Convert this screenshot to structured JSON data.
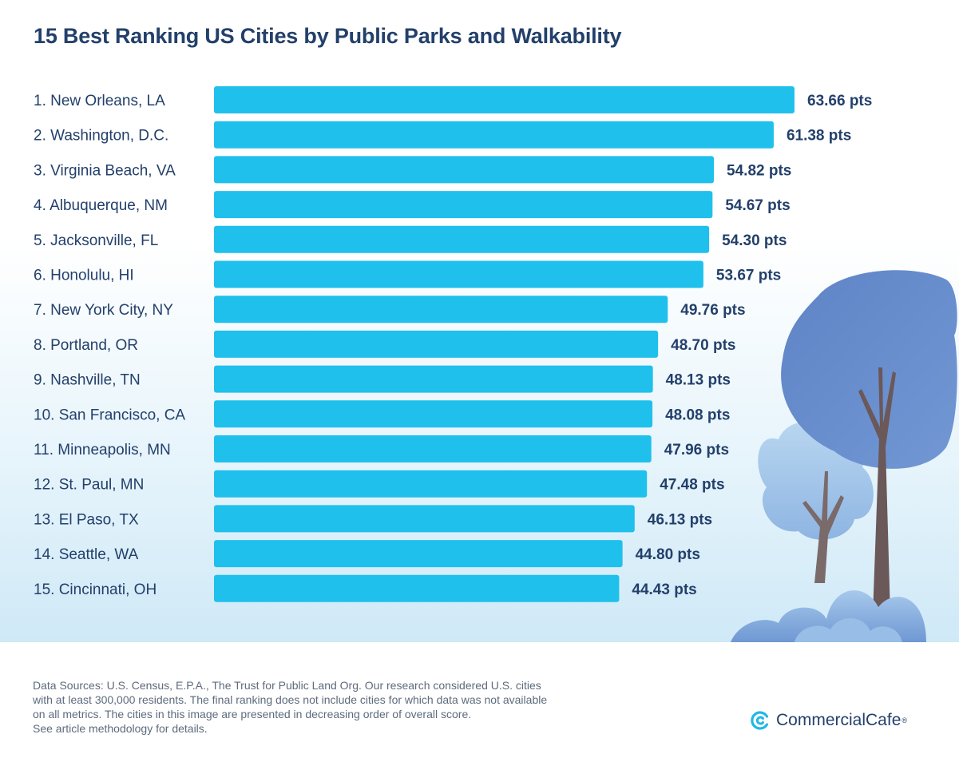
{
  "title": "15 Best Ranking US Cities by Public Parks and Walkability",
  "chart_data": {
    "type": "bar",
    "orientation": "horizontal",
    "title": "15 Best Ranking US Cities by Public Parks and Walkability",
    "categories": [
      "1. New Orleans, LA",
      "2. Washington, D.C.",
      "3. Virginia Beach, VA",
      "4. Albuquerque, NM",
      "5.  Jacksonville, FL",
      "6. Honolulu, HI",
      "7. New York City, NY",
      "8. Portland, OR",
      "9. Nashville, TN",
      "10. San Francisco, CA",
      "11. Minneapolis, MN",
      "12. St. Paul, MN",
      "13. El Paso, TX",
      "14. Seattle, WA",
      "15. Cincinnati, OH"
    ],
    "values": [
      63.66,
      61.38,
      54.82,
      54.67,
      54.3,
      53.67,
      49.76,
      48.7,
      48.13,
      48.08,
      47.96,
      47.48,
      46.13,
      44.8,
      44.43
    ],
    "value_labels": [
      "63.66 pts",
      "61.38 pts",
      "54.82 pts",
      "54.67 pts",
      "54.30 pts",
      "53.67 pts",
      "49.76 pts",
      "48.70 pts",
      "48.13 pts",
      "48.08 pts",
      "47.96 pts",
      "47.48 pts",
      "46.13 pts",
      "44.80 pts",
      "44.43 pts"
    ],
    "xlabel": "",
    "ylabel": "",
    "grid": false,
    "colors": {
      "bar": "#1fc0ec",
      "text": "#23406b"
    }
  },
  "footer": {
    "lines": [
      "Data Sources: U.S. Census, E.P.A., The Trust for Public Land Org. Our research considered U.S. cities",
      "with at least 300,000 residents. The final ranking does not include cities for which data was not available",
      "on all metrics. The cities in this image are presented in decreasing order of overall score.",
      "See article methodology for details."
    ]
  },
  "brand": {
    "name": "CommercialCafe",
    "mark": "®",
    "icon": "commercialcafe-logo-icon"
  }
}
